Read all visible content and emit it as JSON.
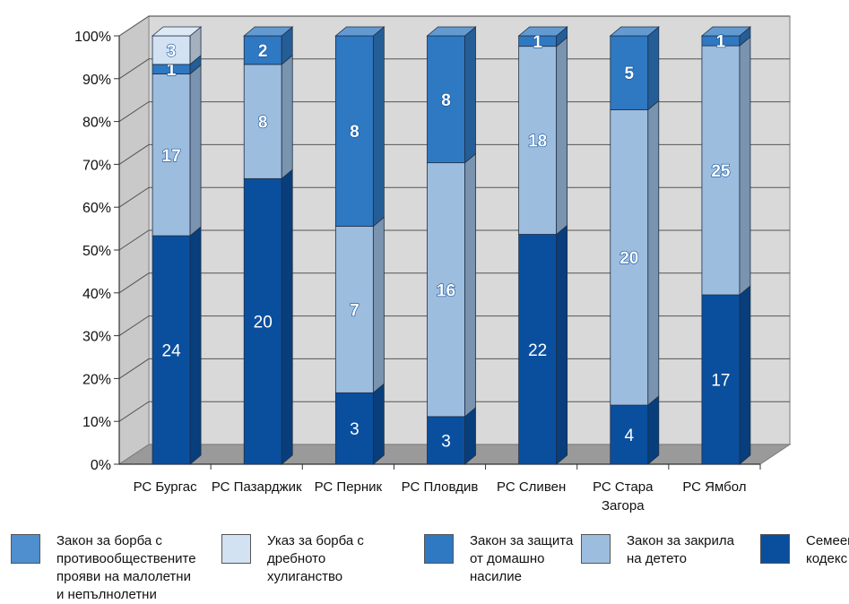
{
  "chart_data": {
    "type": "bar",
    "stacked": "percent",
    "title": "",
    "ylabel": "",
    "xlabel": "",
    "ylim": [
      0,
      100
    ],
    "y_ticks": [
      "0%",
      "10%",
      "20%",
      "30%",
      "40%",
      "50%",
      "60%",
      "70%",
      "80%",
      "90%",
      "100%"
    ],
    "categories": [
      [
        "РС Бургас"
      ],
      [
        "РС Пазарджик"
      ],
      [
        "РС Перник"
      ],
      [
        "РС Пловдив"
      ],
      [
        "РС Сливен"
      ],
      [
        "РС Стара",
        "Загора"
      ],
      [
        "РС Ямбол"
      ]
    ],
    "series": [
      {
        "name": "Семеен кодекс",
        "color": "#0a4f9e",
        "values": [
          24,
          20,
          3,
          3,
          22,
          4,
          17
        ]
      },
      {
        "name": "Закон за закрила на детето",
        "color": "#9dbddf",
        "values": [
          17,
          8,
          7,
          16,
          18,
          20,
          25
        ]
      },
      {
        "name": "Закон за защита от домашно насилие",
        "color": "#2f78c2",
        "values": [
          1,
          2,
          8,
          8,
          1,
          5,
          1
        ]
      },
      {
        "name": "Указ за борба с дребното хулиганство",
        "color": "#d2e2f2",
        "values": [
          3,
          0,
          0,
          0,
          0,
          0,
          0
        ]
      },
      {
        "name": "Закон за борба с противообществените прояви на малолетни и непълнолетни",
        "color": "#4f8fcf",
        "values": [
          0,
          0,
          0,
          0,
          0,
          0,
          0
        ]
      }
    ],
    "grid": true,
    "legend_position": "bottom"
  },
  "legend": [
    {
      "lines": [
        "Закон за борба с",
        "противообществените",
        "прояви на малолетни",
        "и непълнолетни"
      ],
      "color": "#4f8fcf"
    },
    {
      "lines": [
        "Указ за борба с",
        "дребното",
        "хулиганство"
      ],
      "color": "#d2e2f2"
    },
    {
      "lines": [
        "Закон за защита",
        "от домашно",
        "насилие"
      ],
      "color": "#2f78c2"
    },
    {
      "lines": [
        "Закон за закрила",
        "на детето"
      ],
      "color": "#9dbddf"
    },
    {
      "lines": [
        "Семеен",
        "кодекс"
      ],
      "color": "#0a4f9e"
    }
  ]
}
